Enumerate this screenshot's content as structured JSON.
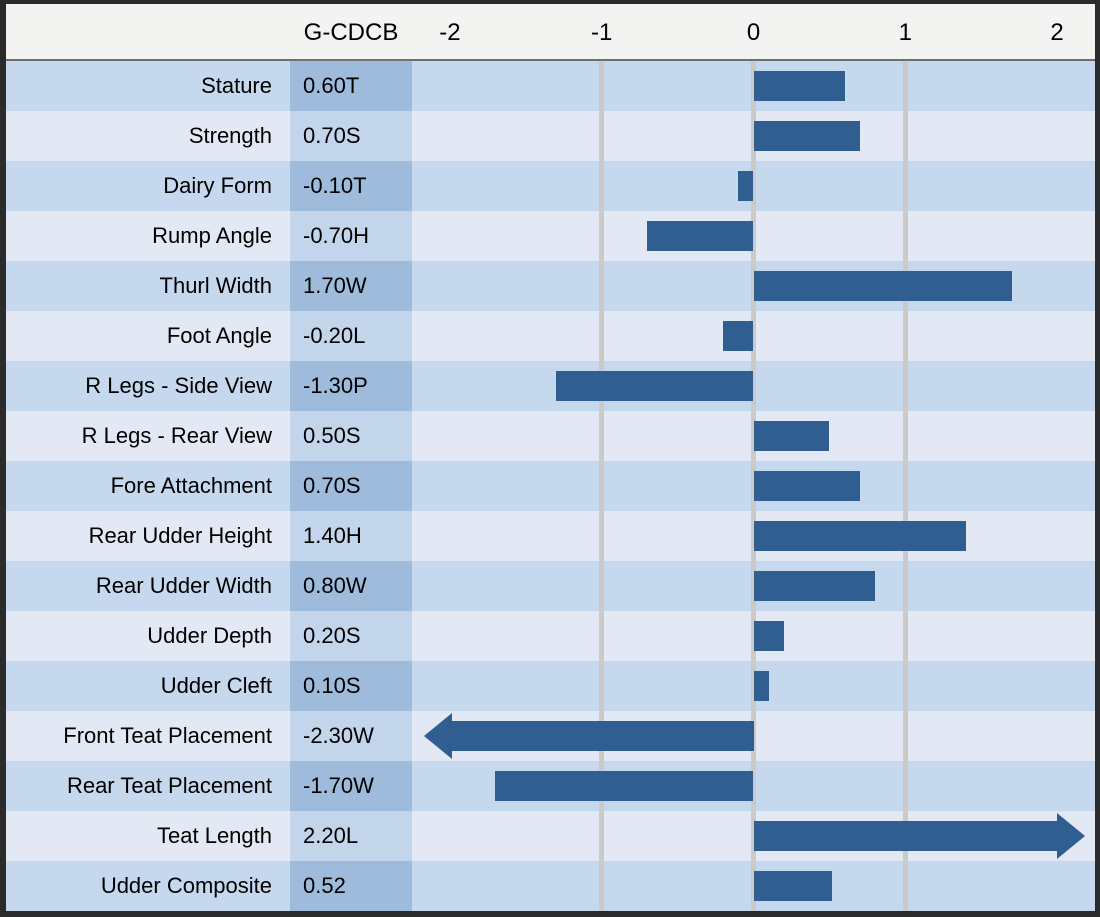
{
  "chart_data": {
    "type": "bar",
    "orientation": "horizontal",
    "title": "",
    "value_column_header": "G-CDCB",
    "categories": [
      "Stature",
      "Strength",
      "Dairy Form",
      "Rump Angle",
      "Thurl Width",
      "Foot Angle",
      "R Legs - Side View",
      "R Legs - Rear View",
      "Fore Attachment",
      "Rear Udder Height",
      "Rear Udder Width",
      "Udder Depth",
      "Udder Cleft",
      "Front Teat Placement",
      "Rear Teat Placement",
      "Teat Length",
      "Udder Composite"
    ],
    "values": [
      0.6,
      0.7,
      -0.1,
      -0.7,
      1.7,
      -0.2,
      -1.3,
      0.5,
      0.7,
      1.4,
      0.8,
      0.2,
      0.1,
      -2.3,
      -1.7,
      2.2,
      0.52
    ],
    "value_labels": [
      "0.60T",
      "0.70S",
      "-0.10T",
      "-0.70H",
      "1.70W",
      "-0.20L",
      "-1.30P",
      "0.50S",
      "0.70S",
      "1.40H",
      "0.80W",
      "0.20S",
      "0.10S",
      "-2.30W",
      "-1.70W",
      "2.20L",
      "0.52"
    ],
    "overflow_arrows": [
      null,
      null,
      null,
      null,
      null,
      null,
      null,
      null,
      null,
      null,
      null,
      null,
      null,
      "left",
      null,
      "right",
      null
    ],
    "axis_ticks": [
      "-2",
      "-1",
      "0",
      "1",
      "2"
    ],
    "axis_tick_values": [
      -2,
      -1,
      0,
      1,
      2
    ],
    "gridlines_at": [
      -1,
      0,
      1
    ],
    "xlim": [
      -2.25,
      2.25
    ],
    "xlabel": "",
    "ylabel": "",
    "legend": "none"
  },
  "colors": {
    "bar": "#315E90",
    "row_light_bg": "#E2E9F4",
    "row_medium_bg": "#C5D8ED",
    "value_cell_dark_bg": "#9EBBDB",
    "value_cell_medium_bg": "#C3D5EB",
    "header_bg": "#F3F3F2",
    "gridline": "#CBCAC8",
    "border": "#2B2B2B"
  }
}
